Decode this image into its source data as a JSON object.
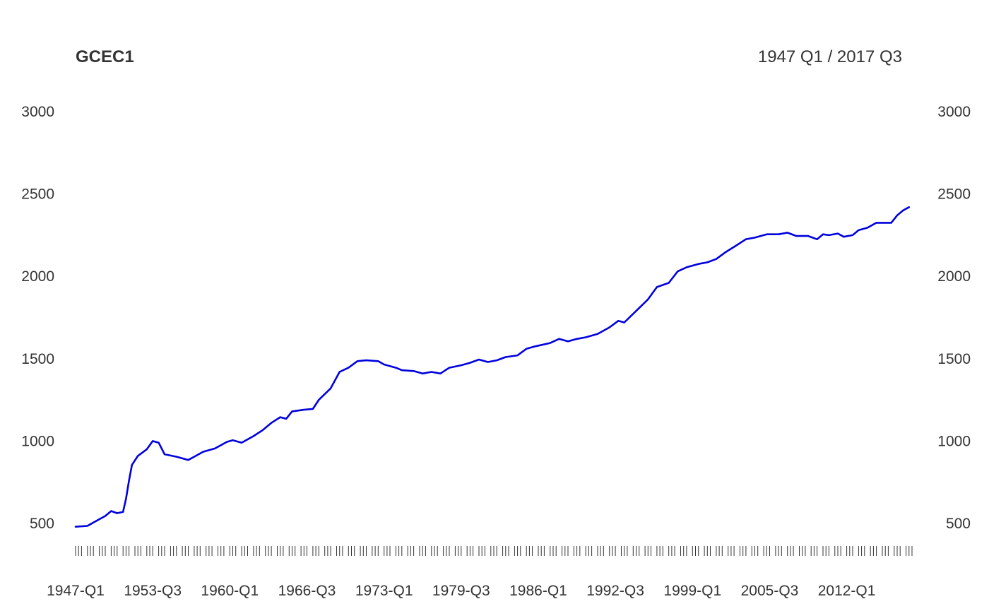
{
  "chart_data": {
    "type": "line",
    "title": "GCEC1",
    "date_range": "1947 Q1 / 2017 Q3",
    "xlabel": "",
    "ylabel": "",
    "frequency": "quarterly",
    "x_start": "1947-Q1",
    "x_end": "2017-Q3",
    "x_tick_labels": [
      "1947-Q1",
      "1953-Q3",
      "1960-Q1",
      "1966-Q3",
      "1973-Q1",
      "1979-Q3",
      "1986-Q1",
      "1992-Q3",
      "1999-Q1",
      "2005-Q3",
      "2012-Q1"
    ],
    "y_tick_labels": [
      "500",
      "1000",
      "1500",
      "2000",
      "2500",
      "3000"
    ],
    "ylim": [
      500,
      3000
    ],
    "grid": false,
    "line_color": "#0000dd",
    "series": [
      {
        "values": [
          {
            "x": "1947-Q1",
            "y": 480
          },
          {
            "x": "1948-Q1",
            "y": 485
          },
          {
            "x": "1948-Q3",
            "y": 505
          },
          {
            "x": "1949-Q3",
            "y": 545
          },
          {
            "x": "1950-Q1",
            "y": 575
          },
          {
            "x": "1950-Q3",
            "y": 562
          },
          {
            "x": "1951-Q1",
            "y": 570
          },
          {
            "x": "1951-Q2",
            "y": 650
          },
          {
            "x": "1951-Q3",
            "y": 760
          },
          {
            "x": "1951-Q4",
            "y": 855
          },
          {
            "x": "1952-Q2",
            "y": 910
          },
          {
            "x": "1953-Q1",
            "y": 950
          },
          {
            "x": "1953-Q3",
            "y": 1000
          },
          {
            "x": "1954-Q1",
            "y": 990
          },
          {
            "x": "1954-Q3",
            "y": 920
          },
          {
            "x": "1955-Q3",
            "y": 905
          },
          {
            "x": "1956-Q3",
            "y": 885
          },
          {
            "x": "1957-Q1",
            "y": 905
          },
          {
            "x": "1957-Q4",
            "y": 935
          },
          {
            "x": "1958-Q4",
            "y": 955
          },
          {
            "x": "1959-Q4",
            "y": 995
          },
          {
            "x": "1960-Q2",
            "y": 1005
          },
          {
            "x": "1961-Q1",
            "y": 990
          },
          {
            "x": "1962-Q1",
            "y": 1030
          },
          {
            "x": "1962-Q4",
            "y": 1065
          },
          {
            "x": "1963-Q3",
            "y": 1110
          },
          {
            "x": "1964-Q2",
            "y": 1145
          },
          {
            "x": "1964-Q4",
            "y": 1135
          },
          {
            "x": "1965-Q2",
            "y": 1180
          },
          {
            "x": "1966-Q2",
            "y": 1190
          },
          {
            "x": "1967-Q1",
            "y": 1195
          },
          {
            "x": "1967-Q3",
            "y": 1250
          },
          {
            "x": "1968-Q3",
            "y": 1320
          },
          {
            "x": "1969-Q2",
            "y": 1420
          },
          {
            "x": "1970-Q1",
            "y": 1445
          },
          {
            "x": "1970-Q4",
            "y": 1485
          },
          {
            "x": "1971-Q3",
            "y": 1490
          },
          {
            "x": "1972-Q3",
            "y": 1485
          },
          {
            "x": "1973-Q1",
            "y": 1465
          },
          {
            "x": "1974-Q1",
            "y": 1445
          },
          {
            "x": "1974-Q3",
            "y": 1430
          },
          {
            "x": "1975-Q3",
            "y": 1425
          },
          {
            "x": "1976-Q2",
            "y": 1410
          },
          {
            "x": "1977-Q1",
            "y": 1420
          },
          {
            "x": "1977-Q4",
            "y": 1410
          },
          {
            "x": "1978-Q3",
            "y": 1445
          },
          {
            "x": "1979-Q3",
            "y": 1460
          },
          {
            "x": "1980-Q2",
            "y": 1475
          },
          {
            "x": "1981-Q1",
            "y": 1495
          },
          {
            "x": "1981-Q4",
            "y": 1480
          },
          {
            "x": "1982-Q3",
            "y": 1490
          },
          {
            "x": "1983-Q2",
            "y": 1510
          },
          {
            "x": "1984-Q2",
            "y": 1520
          },
          {
            "x": "1985-Q1",
            "y": 1560
          },
          {
            "x": "1985-Q4",
            "y": 1575
          },
          {
            "x": "1987-Q1",
            "y": 1595
          },
          {
            "x": "1987-Q4",
            "y": 1620
          },
          {
            "x": "1988-Q3",
            "y": 1605
          },
          {
            "x": "1989-Q2",
            "y": 1620
          },
          {
            "x": "1990-Q1",
            "y": 1630
          },
          {
            "x": "1991-Q1",
            "y": 1650
          },
          {
            "x": "1992-Q1",
            "y": 1690
          },
          {
            "x": "1992-Q4",
            "y": 1730
          },
          {
            "x": "1993-Q2",
            "y": 1720
          },
          {
            "x": "1994-Q2",
            "y": 1790
          },
          {
            "x": "1995-Q2",
            "y": 1860
          },
          {
            "x": "1996-Q1",
            "y": 1935
          },
          {
            "x": "1997-Q1",
            "y": 1960
          },
          {
            "x": "1997-Q4",
            "y": 2030
          },
          {
            "x": "1998-Q3",
            "y": 2055
          },
          {
            "x": "1999-Q3",
            "y": 2075
          },
          {
            "x": "2000-Q2",
            "y": 2085
          },
          {
            "x": "2001-Q1",
            "y": 2105
          },
          {
            "x": "2001-Q4",
            "y": 2145
          },
          {
            "x": "2002-Q4",
            "y": 2190
          },
          {
            "x": "2003-Q3",
            "y": 2225
          },
          {
            "x": "2004-Q2",
            "y": 2235
          },
          {
            "x": "2005-Q2",
            "y": 2255
          },
          {
            "x": "2006-Q2",
            "y": 2255
          },
          {
            "x": "2007-Q1",
            "y": 2265
          },
          {
            "x": "2007-Q4",
            "y": 2245
          },
          {
            "x": "2008-Q4",
            "y": 2245
          },
          {
            "x": "2009-Q3",
            "y": 2225
          },
          {
            "x": "2010-Q1",
            "y": 2255
          },
          {
            "x": "2010-Q3",
            "y": 2250
          },
          {
            "x": "2011-Q2",
            "y": 2260
          },
          {
            "x": "2011-Q4",
            "y": 2240
          },
          {
            "x": "2012-Q3",
            "y": 2250
          },
          {
            "x": "2013-Q1",
            "y": 2280
          },
          {
            "x": "2013-Q4",
            "y": 2295
          },
          {
            "x": "2014-Q3",
            "y": 2325
          },
          {
            "x": "2015-Q4",
            "y": 2325
          },
          {
            "x": "2016-Q2",
            "y": 2370
          },
          {
            "x": "2016-Q4",
            "y": 2400
          },
          {
            "x": "2017-Q2",
            "y": 2420
          }
        ]
      }
    ]
  }
}
